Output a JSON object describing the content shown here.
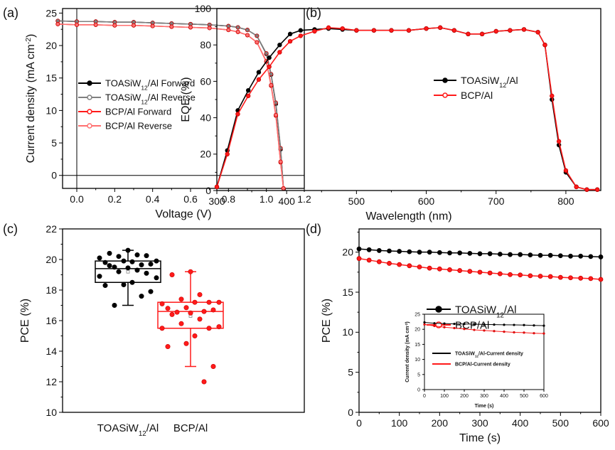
{
  "chart_data": [
    {
      "panel_label": "(a)",
      "type": "line",
      "xlabel": "Voltage (V)",
      "ylabel": "Current density (mA cm⁻²)",
      "xlim": [
        -0.075,
        1.2
      ],
      "ylim": [
        -2,
        25.7
      ],
      "xticks": [
        "0.0",
        "0.2",
        "0.4",
        "0.6",
        "0.8",
        "1.0",
        "1.2"
      ],
      "yticks": [
        "0",
        "5",
        "10",
        "15",
        "20",
        "25"
      ],
      "legend_position": "center-left",
      "x": [
        -0.1,
        0,
        0.1,
        0.2,
        0.3,
        0.4,
        0.5,
        0.6,
        0.7,
        0.8,
        0.85,
        0.9,
        0.95,
        1.0,
        1.025,
        1.05,
        1.075,
        1.09
      ],
      "series": [
        {
          "name": "TOASiW12/Al Forward",
          "color": "#000000",
          "values": [
            23.8,
            23.7,
            23.7,
            23.6,
            23.6,
            23.5,
            23.4,
            23.3,
            23.2,
            23.0,
            22.8,
            22.4,
            21.5,
            18.7,
            15.5,
            11.0,
            4.0,
            -2
          ]
        },
        {
          "name": "TOASiW12/Al Reverse",
          "color": "#808080",
          "values": [
            23.8,
            23.7,
            23.7,
            23.6,
            23.6,
            23.5,
            23.4,
            23.3,
            23.2,
            23.0,
            22.8,
            22.4,
            21.5,
            18.8,
            15.6,
            11.2,
            4.2,
            -2
          ]
        },
        {
          "name": "BCP/Al Forward",
          "color": "#ff1a1a",
          "values": [
            23.3,
            23.2,
            23.2,
            23.1,
            23.1,
            23.0,
            22.9,
            22.8,
            22.7,
            22.4,
            22.1,
            21.6,
            20.5,
            17.5,
            13.8,
            9.2,
            2.0,
            -2
          ]
        },
        {
          "name": "BCP/Al Reverse",
          "color": "#ff7070",
          "values": [
            23.3,
            23.2,
            23.2,
            23.1,
            23.1,
            23.0,
            22.9,
            22.8,
            22.7,
            22.4,
            22.1,
            21.6,
            20.5,
            17.6,
            13.9,
            9.3,
            2.1,
            -2
          ]
        }
      ]
    },
    {
      "panel_label": "(b)",
      "type": "line",
      "xlabel": "Wavelength (nm)",
      "ylabel": "EQE (%)",
      "xlim": [
        300,
        850
      ],
      "ylim": [
        0,
        100
      ],
      "xticks": [
        "300",
        "400",
        "500",
        "600",
        "700",
        "800"
      ],
      "yticks": [
        "0",
        "20",
        "40",
        "60",
        "80",
        "100"
      ],
      "legend_position": "center",
      "x": [
        300,
        315,
        330,
        345,
        360,
        375,
        390,
        405,
        420,
        440,
        460,
        480,
        500,
        525,
        550,
        575,
        600,
        620,
        640,
        660,
        680,
        700,
        720,
        740,
        760,
        770,
        780,
        790,
        800,
        815,
        830,
        845
      ],
      "series": [
        {
          "name": "TOASiW12/Al",
          "color": "#000000",
          "values": [
            2,
            22,
            44,
            55,
            65,
            73,
            80,
            86,
            88,
            88.5,
            89,
            88.5,
            88,
            88,
            88,
            88,
            89,
            89.5,
            88,
            86,
            86,
            87.5,
            88,
            88.5,
            87,
            80,
            50,
            25,
            10,
            2,
            0.5,
            0.5
          ]
        },
        {
          "name": "BCP/Al",
          "color": "#ff1a1a",
          "values": [
            2,
            20,
            42,
            52,
            61,
            68,
            76,
            82,
            85,
            87.5,
            89.5,
            89,
            88,
            88,
            88,
            88,
            89,
            89.5,
            88,
            86,
            86,
            87.5,
            88,
            88.5,
            87,
            80,
            52,
            27,
            11,
            2,
            0.5,
            0.5
          ]
        }
      ]
    },
    {
      "panel_label": "(c)",
      "type": "box",
      "ylabel": "PCE (%)",
      "ylim": [
        10,
        22
      ],
      "yticks": [
        "10",
        "12",
        "14",
        "16",
        "18",
        "20",
        "22"
      ],
      "categories": [
        "TOASiW12/Al",
        "BCP/Al"
      ],
      "series": [
        {
          "name": "TOASiW12/Al",
          "color": "#000000",
          "q1": 18.5,
          "median": 19.4,
          "q3": 19.9,
          "whisker_low": 17.0,
          "whisker_high": 20.6,
          "mean": 19.2,
          "points": [
            20.6,
            20.4,
            20.3,
            20.2,
            20.25,
            20.1,
            19.9,
            19.85,
            19.9,
            19.8,
            19.7,
            19.65,
            19.5,
            19.45,
            19.6,
            19.3,
            19.2,
            19.1,
            18.9,
            18.8,
            18.5,
            18.35,
            18.3,
            17.9,
            17.6,
            17.0
          ]
        },
        {
          "name": "BCP/Al",
          "color": "#ff1a1a",
          "q1": 15.5,
          "median": 16.6,
          "q3": 17.2,
          "whisker_low": 13.0,
          "whisker_high": 19.2,
          "mean": 16.3,
          "points": [
            19.2,
            19.0,
            17.7,
            17.4,
            17.2,
            17.1,
            17.2,
            17.2,
            16.85,
            16.8,
            16.7,
            16.6,
            16.55,
            16.5,
            16.4,
            16.1,
            15.8,
            15.5,
            15.5,
            15.6,
            15.0,
            14.5,
            14.3,
            13.0,
            12.0
          ]
        }
      ]
    },
    {
      "panel_label": "(d)",
      "type": "line",
      "xlabel": "Time (s)",
      "ylabel": "PCE (%)",
      "xlim": [
        0,
        600
      ],
      "ylim": [
        0,
        22.9
      ],
      "xticks": [
        "0",
        "100",
        "200",
        "300",
        "400",
        "500",
        "600"
      ],
      "yticks": [
        "0",
        "5",
        "10",
        "15",
        "20"
      ],
      "legend_position": "center-right",
      "x": [
        0,
        25,
        50,
        75,
        100,
        125,
        150,
        175,
        200,
        225,
        250,
        275,
        300,
        325,
        350,
        375,
        400,
        425,
        450,
        475,
        500,
        525,
        550,
        575,
        600
      ],
      "series": [
        {
          "name": "TOASiW12/Al",
          "color": "#000000",
          "values": [
            20.4,
            20.3,
            20.2,
            20.15,
            20.1,
            20.05,
            20.0,
            20.0,
            19.95,
            19.9,
            19.9,
            19.85,
            19.8,
            19.8,
            19.75,
            19.7,
            19.7,
            19.65,
            19.6,
            19.6,
            19.55,
            19.5,
            19.5,
            19.45,
            19.4
          ]
        },
        {
          "name": "BCP/Al",
          "color": "#ff1a1a",
          "values": [
            19.2,
            19.0,
            18.8,
            18.6,
            18.45,
            18.3,
            18.15,
            18.0,
            17.9,
            17.8,
            17.7,
            17.6,
            17.5,
            17.4,
            17.3,
            17.2,
            17.15,
            17.05,
            17.0,
            16.95,
            16.85,
            16.8,
            16.75,
            16.7,
            16.6
          ]
        }
      ],
      "inset": {
        "type": "line",
        "xlabel": "Time (s)",
        "ylabel": "Current density (mA cm⁻²)",
        "xlim": [
          0,
          600
        ],
        "ylim": [
          0,
          25
        ],
        "xticks": [
          "0",
          "100",
          "200",
          "300",
          "400",
          "500",
          "600"
        ],
        "yticks": [
          "0",
          "5",
          "10",
          "15",
          "20",
          "25"
        ],
        "x": [
          0,
          50,
          100,
          150,
          200,
          250,
          300,
          350,
          400,
          450,
          500,
          550,
          600
        ],
        "series": [
          {
            "name": "TOASiW12/Al-Current density",
            "color": "#000000",
            "values": [
              22.3,
              22.0,
              21.9,
              21.8,
              21.75,
              21.7,
              21.6,
              21.55,
              21.5,
              21.45,
              21.4,
              21.3,
              21.2
            ]
          },
          {
            "name": "BCP/Al-Current density",
            "color": "#ff1a1a",
            "values": [
              21.6,
              21.1,
              20.7,
              20.4,
              20.1,
              19.8,
              19.6,
              19.4,
              19.2,
              19.0,
              18.9,
              18.7,
              18.6
            ]
          }
        ]
      }
    }
  ]
}
